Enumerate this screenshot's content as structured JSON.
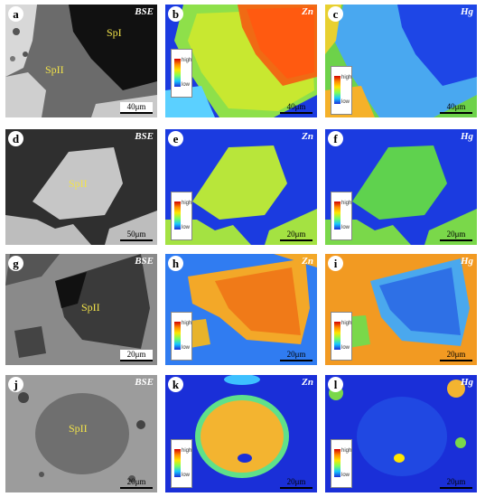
{
  "panels": [
    {
      "id": "a",
      "type": "BSE",
      "phases": [
        "SpI",
        "SpII"
      ],
      "scale": "40μm"
    },
    {
      "id": "b",
      "type": "Zn",
      "legend_high": "high",
      "legend_low": "low",
      "scale": "40μm"
    },
    {
      "id": "c",
      "type": "Hg",
      "legend_high": "high",
      "legend_low": "low",
      "scale": "40μm"
    },
    {
      "id": "d",
      "type": "BSE",
      "phases": [
        "SpII"
      ],
      "scale": "50μm"
    },
    {
      "id": "e",
      "type": "Zn",
      "legend_high": "high",
      "legend_low": "low",
      "scale": "20μm"
    },
    {
      "id": "f",
      "type": "Hg",
      "legend_high": "high",
      "legend_low": "low",
      "scale": "20μm"
    },
    {
      "id": "g",
      "type": "BSE",
      "phases": [
        "SpII"
      ],
      "scale": "20μm"
    },
    {
      "id": "h",
      "type": "Zn",
      "legend_high": "high",
      "legend_low": "low",
      "scale": "20μm"
    },
    {
      "id": "i",
      "type": "Hg",
      "legend_high": "high",
      "legend_low": "low",
      "scale": "20μm"
    },
    {
      "id": "j",
      "type": "BSE",
      "phases": [
        "SpII"
      ],
      "scale": "20μm"
    },
    {
      "id": "k",
      "type": "Zn",
      "legend_high": "high",
      "legend_low": "low",
      "scale": "20μm"
    },
    {
      "id": "l",
      "type": "Hg",
      "legend_high": "high",
      "legend_low": "low",
      "scale": "20μm"
    }
  ]
}
